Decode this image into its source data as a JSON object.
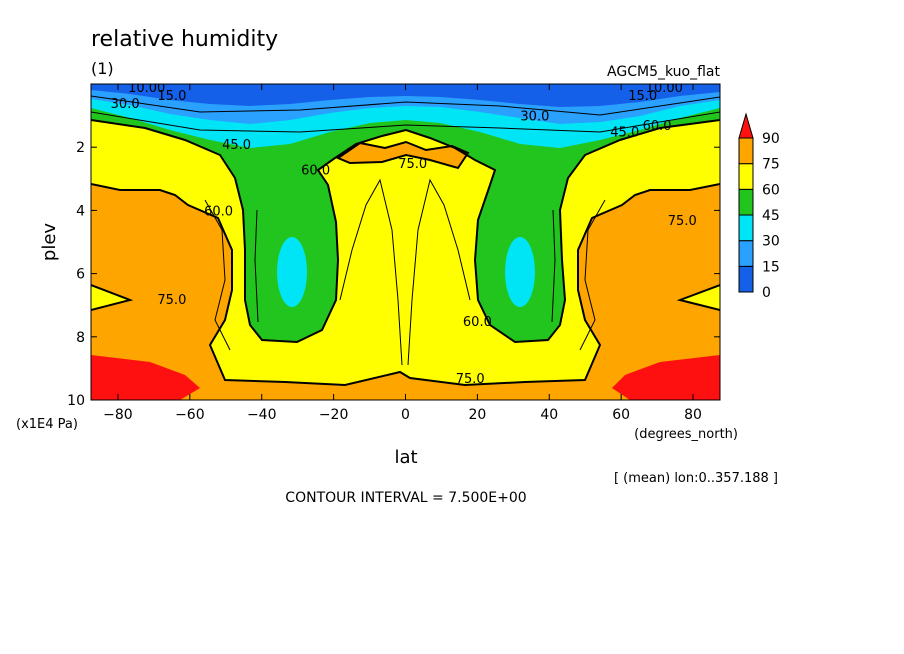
{
  "chart_data": {
    "type": "heatmap",
    "title": "relative humidity",
    "subtitle": "(1)",
    "experiment": "AGCM5_kuo_flat",
    "xlabel": "lat",
    "xunits": "(degrees_north)",
    "ylabel": "plev",
    "yunits": "(x1E4 Pa)",
    "xlim": [
      -87.5,
      87.5
    ],
    "ylim": [
      10,
      0
    ],
    "x_ticks": [
      -80,
      -60,
      -40,
      -20,
      0,
      20,
      40,
      60,
      80
    ],
    "y_ticks": [
      2,
      4,
      6,
      8,
      10
    ],
    "averaging_note": "[ (mean) lon:0..357.188 ]",
    "contour_interval_text": "CONTOUR INTERVAL = 7.500E+00",
    "contour_interval": 7.5,
    "colorbar": {
      "levels": [
        0,
        15,
        30,
        45,
        60,
        75,
        90
      ],
      "colors": [
        "#1560e8",
        "#2aa0ff",
        "#00e5f5",
        "#22c51e",
        "#ffff00",
        "#ffa500",
        "#ff1010"
      ]
    },
    "contour_labels": [
      {
        "text": "10.00",
        "lat": -72,
        "plev": 0.1
      },
      {
        "text": "10.00",
        "lat": 72,
        "plev": 0.1
      },
      {
        "text": "15.0",
        "lat": -65,
        "plev": 0.35
      },
      {
        "text": "15.0",
        "lat": 66,
        "plev": 0.35
      },
      {
        "text": "30.0",
        "lat": -78,
        "plev": 0.6
      },
      {
        "text": "30.0",
        "lat": 36,
        "plev": 1.0
      },
      {
        "text": "45.0",
        "lat": -47,
        "plev": 1.9
      },
      {
        "text": "45.0",
        "lat": 61,
        "plev": 1.5
      },
      {
        "text": "60.0",
        "lat": 70,
        "plev": 1.3
      },
      {
        "text": "60.0",
        "lat": -52,
        "plev": 4.0
      },
      {
        "text": "60.0",
        "lat": -25,
        "plev": 2.7
      },
      {
        "text": "60.0",
        "lat": 20,
        "plev": 7.5
      },
      {
        "text": "75.0",
        "lat": 2,
        "plev": 2.5
      },
      {
        "text": "75.0",
        "lat": 77,
        "plev": 4.3
      },
      {
        "text": "75.0",
        "lat": -65,
        "plev": 6.8
      },
      {
        "text": "75.0",
        "lat": 18,
        "plev": 9.3
      }
    ]
  }
}
